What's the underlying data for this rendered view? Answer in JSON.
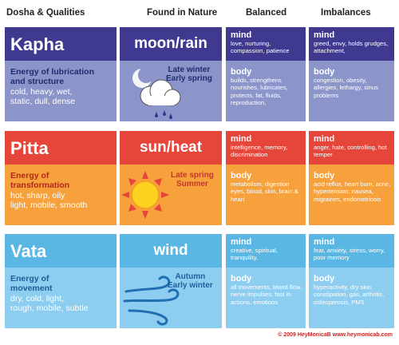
{
  "headers": {
    "dosha": "Dosha & Qualities",
    "nature": "Found in Nature",
    "balanced": "Balanced",
    "imbalances": "Imbalances"
  },
  "rows": [
    {
      "name": "Kapha",
      "energy_title": "Energy of lubrication and structure",
      "energy_line1": "Energy of lubrication",
      "energy_line2": "and structure",
      "qualities_line1": "cold, heavy, wet,",
      "qualities_line2": "static, dull, dense",
      "nature": "moon/rain",
      "season1": "Late winter",
      "season2": "Early spring",
      "balanced_mind_label": "mind",
      "balanced_mind": "love, nurturing, compassion, patience",
      "balanced_body_label": "body",
      "balanced_body": "builds, strengthens nourishes, lubricates, protects, fat, fluids, reproduction,",
      "imbalance_mind_label": "mind",
      "imbalance_mind": "greed, envy, holds grudges, attachment,",
      "imbalance_body_label": "body",
      "imbalance_body": "congestion, obesity, allergies, lethargy, sinus problems"
    },
    {
      "name": "Pitta",
      "energy_line1": "Energy of",
      "energy_line2": "transformation",
      "qualities_line1": "hot, sharp, oily",
      "qualities_line2": "light, mobile, smooth",
      "nature": "sun/heat",
      "season1": "Late spring",
      "season2": "Summer",
      "balanced_mind_label": "mind",
      "balanced_mind": "intelligence, memory, discrimination",
      "balanced_body_label": "body",
      "balanced_body": "metabolism, digestion eyes, blood, skin, brain & heart",
      "imbalance_mind_label": "mind",
      "imbalance_mind": "anger, hate, controlling, hot temper",
      "imbalance_body_label": "body",
      "imbalance_body": "acid reflux, heart burn, acne, hypertension, nausea, migraines, endometriosis"
    },
    {
      "name": "Vata",
      "energy_line1": "Energy of",
      "energy_line2": "movement",
      "qualities_line1": "dry, cold, light,",
      "qualities_line2": "rough, mobile, subtle",
      "nature": "wind",
      "season1": "Autumn",
      "season2": "Early winter",
      "balanced_mind_label": "mind",
      "balanced_mind": "creative, spiritual, tranquility,",
      "balanced_body_label": "body",
      "balanced_body": "all movements, blood flow, nerve impulses, fast in actions, emotions",
      "imbalance_mind_label": "mind",
      "imbalance_mind": "fear, anxiety, stress, worry, poor memory",
      "imbalance_body_label": "body",
      "imbalance_body": "hyperactivity, dry skin, constipation, gas, arthritis, osteoperosis, PMS"
    }
  ],
  "footer": "© 2009 HeyMonicaB  www.heymonicab.com",
  "colors": {
    "kapha_top": "#3f3a8f",
    "kapha_bottom": "#8c95c9",
    "pitta_top": "#e6453a",
    "pitta_bottom": "#f7a13c",
    "vata_top": "#5ab7e3",
    "vata_bottom": "#8dcdf0"
  }
}
